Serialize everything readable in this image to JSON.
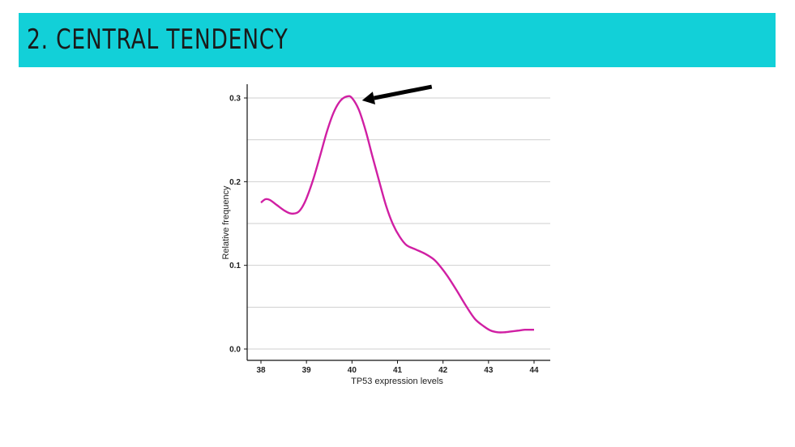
{
  "slide": {
    "title": "2. CENTRAL TENDENCY",
    "accent_color": "#12d0d8"
  },
  "chart_data": {
    "type": "line",
    "title": "",
    "xlabel": "TP53 expression levels",
    "ylabel": "Relative frequency",
    "xlim": [
      38,
      44
    ],
    "ylim": [
      0.0,
      0.3
    ],
    "x_ticks": [
      "38",
      "39",
      "40",
      "41",
      "42",
      "43",
      "44"
    ],
    "y_ticks": [
      "0.0",
      "0.1",
      "0.2",
      "0.3"
    ],
    "grid": "horizontal",
    "line_color": "#d01fa3",
    "series": [
      {
        "x": [
          38.0,
          38.1,
          38.2,
          38.35,
          38.5,
          38.65,
          38.8,
          38.9,
          39.0,
          39.15,
          39.3,
          39.45,
          39.6,
          39.75,
          39.9,
          40.0,
          40.15,
          40.3,
          40.45,
          40.6,
          40.75,
          40.9,
          41.05,
          41.2,
          41.4,
          41.6,
          41.8,
          41.95,
          42.1,
          42.3,
          42.5,
          42.7,
          42.9,
          43.05,
          43.2,
          43.35,
          43.5,
          43.65,
          43.8,
          44.0
        ],
        "y": [
          0.175,
          0.179,
          0.178,
          0.172,
          0.166,
          0.162,
          0.163,
          0.169,
          0.18,
          0.203,
          0.231,
          0.26,
          0.283,
          0.297,
          0.302,
          0.3,
          0.286,
          0.261,
          0.23,
          0.2,
          0.171,
          0.149,
          0.134,
          0.124,
          0.119,
          0.114,
          0.107,
          0.098,
          0.087,
          0.07,
          0.052,
          0.036,
          0.027,
          0.022,
          0.02,
          0.02,
          0.021,
          0.022,
          0.023,
          0.023
        ]
      }
    ],
    "annotation": {
      "type": "arrow",
      "points_to": {
        "x": 40.15,
        "y": 0.299
      }
    }
  }
}
